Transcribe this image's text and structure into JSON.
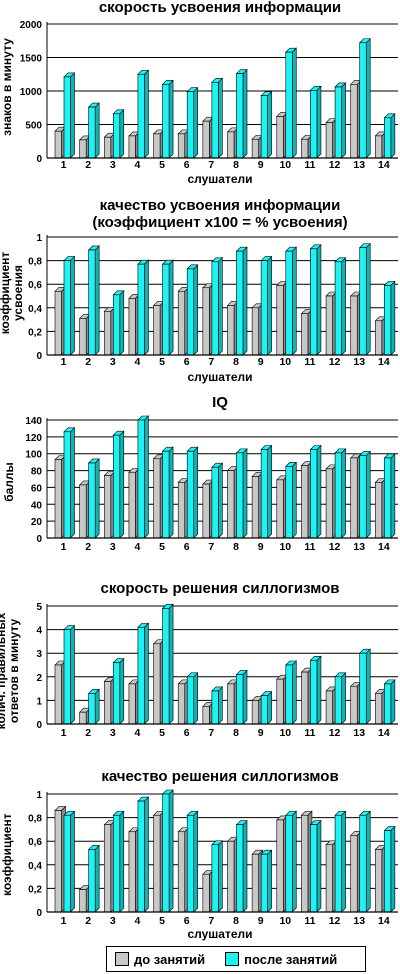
{
  "legend": {
    "before": "до занятий",
    "after": "после занятий"
  },
  "colors": {
    "before": "#c8c8c8",
    "after": "#1ef2f2",
    "edge": "#000000"
  },
  "chart_data": [
    {
      "type": "bar",
      "title": "скорость усвоения информации",
      "ylabel": "знаков в минуту",
      "xlabel": "слушатели",
      "categories": [
        "1",
        "2",
        "3",
        "4",
        "5",
        "6",
        "7",
        "8",
        "9",
        "10",
        "11",
        "12",
        "13",
        "14"
      ],
      "ylim": [
        0,
        2000
      ],
      "yticks": [
        0,
        500,
        1000,
        1500,
        2000
      ],
      "ytick_labels": [
        "0",
        "500",
        "1000",
        "1500",
        "2000"
      ],
      "series": [
        {
          "name": "до занятий",
          "values": [
            400,
            270,
            310,
            330,
            360,
            360,
            550,
            390,
            280,
            620,
            280,
            530,
            1100,
            330
          ]
        },
        {
          "name": "после занятий",
          "values": [
            1210,
            760,
            660,
            1250,
            1100,
            990,
            1130,
            1260,
            930,
            1580,
            1010,
            1060,
            1720,
            600
          ]
        }
      ]
    },
    {
      "type": "bar",
      "title": "качество усвоения информации",
      "subtitle": "(коэффициент х100 = % усвоения)",
      "ylabel": "коэффициент усвоения",
      "xlabel": "слушатели",
      "categories": [
        "1",
        "2",
        "3",
        "4",
        "5",
        "6",
        "7",
        "8",
        "9",
        "10",
        "11",
        "12",
        "13",
        "14"
      ],
      "ylim": [
        0,
        1
      ],
      "yticks": [
        0,
        0.2,
        0.4,
        0.6,
        0.8,
        1
      ],
      "ytick_labels": [
        "0",
        "0,2",
        "0,4",
        "0,6",
        "0,8",
        "1"
      ],
      "series": [
        {
          "name": "до занятий",
          "values": [
            0.54,
            0.31,
            0.37,
            0.48,
            0.42,
            0.54,
            0.57,
            0.42,
            0.4,
            0.59,
            0.35,
            0.5,
            0.5,
            0.29
          ]
        },
        {
          "name": "после занятий",
          "values": [
            0.8,
            0.89,
            0.51,
            0.77,
            0.77,
            0.73,
            0.79,
            0.88,
            0.8,
            0.88,
            0.9,
            0.79,
            0.91,
            0.59
          ]
        }
      ]
    },
    {
      "type": "bar",
      "title": "IQ",
      "ylabel": "баллы",
      "xlabel": "",
      "categories": [
        "1",
        "2",
        "3",
        "4",
        "5",
        "6",
        "7",
        "8",
        "9",
        "10",
        "11",
        "12",
        "13",
        "14"
      ],
      "ylim": [
        0,
        140
      ],
      "yticks": [
        0,
        20,
        40,
        60,
        80,
        100,
        120,
        140
      ],
      "ytick_labels": [
        "0",
        "20",
        "40",
        "60",
        "80",
        "100",
        "120",
        "140"
      ],
      "series": [
        {
          "name": "до занятий",
          "values": [
            93,
            63,
            74,
            78,
            94,
            66,
            64,
            80,
            73,
            69,
            86,
            82,
            95,
            66
          ]
        },
        {
          "name": "после занятий",
          "values": [
            126,
            89,
            122,
            140,
            103,
            103,
            84,
            101,
            105,
            85,
            105,
            101,
            98,
            95
          ]
        }
      ]
    },
    {
      "type": "bar",
      "title": "скорость решения силлогизмов",
      "ylabel": "колич. правильных ответов в минуту",
      "xlabel": "",
      "categories": [
        "1",
        "2",
        "3",
        "4",
        "5",
        "6",
        "7",
        "8",
        "9",
        "10",
        "11",
        "12",
        "13",
        "14"
      ],
      "ylim": [
        0,
        5
      ],
      "yticks": [
        0,
        1,
        2,
        3,
        4,
        5
      ],
      "ytick_labels": [
        "0",
        "1",
        "2",
        "3",
        "4",
        "5"
      ],
      "series": [
        {
          "name": "до занятий",
          "values": [
            2.5,
            0.5,
            1.8,
            1.7,
            3.4,
            1.7,
            0.75,
            1.7,
            1.0,
            1.9,
            2.2,
            1.4,
            1.6,
            1.3
          ]
        },
        {
          "name": "после занятий",
          "values": [
            4.0,
            1.3,
            2.6,
            4.1,
            4.9,
            2.0,
            1.4,
            2.1,
            1.2,
            2.5,
            2.7,
            2.0,
            3.0,
            1.7
          ]
        }
      ]
    },
    {
      "type": "bar",
      "title": "качество решения силлогизмов",
      "ylabel": "коэффициент",
      "xlabel": "слушатели",
      "categories": [
        "1",
        "2",
        "3",
        "4",
        "5",
        "6",
        "7",
        "8",
        "9",
        "10",
        "11",
        "12",
        "13",
        "14"
      ],
      "ylim": [
        0,
        1
      ],
      "yticks": [
        0,
        0.2,
        0.4,
        0.6,
        0.8,
        1
      ],
      "ytick_labels": [
        "0",
        "0,2",
        "0,4",
        "0,6",
        "0,8",
        "1"
      ],
      "series": [
        {
          "name": "до занятий",
          "values": [
            0.86,
            0.19,
            0.74,
            0.68,
            0.82,
            0.68,
            0.32,
            0.6,
            0.49,
            0.78,
            0.82,
            0.57,
            0.65,
            0.53
          ]
        },
        {
          "name": "после занятий",
          "values": [
            0.82,
            0.53,
            0.82,
            0.94,
            1.0,
            0.82,
            0.57,
            0.74,
            0.49,
            0.82,
            0.74,
            0.82,
            0.82,
            0.69
          ]
        }
      ]
    }
  ]
}
